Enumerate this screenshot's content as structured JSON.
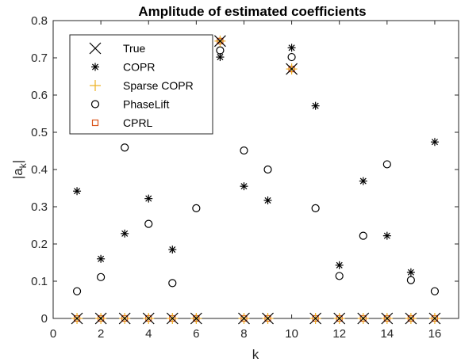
{
  "chart_data": {
    "type": "scatter",
    "title": "Amplitude of estimated coefficients",
    "xlabel": "k",
    "ylabel_main": "|a",
    "ylabel_sub": "k",
    "ylabel_end": "|",
    "xlim": [
      0,
      17
    ],
    "ylim": [
      0,
      0.8
    ],
    "xticks": [
      "0",
      "2",
      "4",
      "6",
      "8",
      "10",
      "12",
      "14",
      "16"
    ],
    "yticks": [
      "0",
      "0.1",
      "0.2",
      "0.3",
      "0.4",
      "0.5",
      "0.6",
      "0.7",
      "0.8"
    ],
    "grid": false,
    "legend_position": "top-left",
    "colors": {
      "true": "#000000",
      "copr": "#000000",
      "sparse_copr": "#EDB120",
      "phaselift": "#000000",
      "cprl": "#D95319"
    },
    "series": [
      {
        "name": "True",
        "marker": "x",
        "x": [
          1,
          2,
          3,
          4,
          5,
          6,
          7,
          8,
          9,
          10,
          11,
          12,
          13,
          14,
          15,
          16
        ],
        "y": [
          0,
          0,
          0,
          0,
          0,
          0,
          0.745,
          0,
          0,
          0.67,
          0,
          0,
          0,
          0,
          0,
          0
        ]
      },
      {
        "name": "COPR",
        "marker": "asterisk",
        "x": [
          1,
          2,
          3,
          4,
          5,
          6,
          7,
          7,
          8,
          9,
          10,
          11,
          12,
          13,
          14,
          15,
          16
        ],
        "y": [
          0.342,
          0.16,
          0.228,
          0.322,
          0.185,
          0.0,
          0.745,
          0.702,
          0.355,
          0.317,
          0.727,
          0.571,
          0.143,
          0.369,
          0.222,
          0.124,
          0.474
        ]
      },
      {
        "name": "Sparse COPR",
        "marker": "plus",
        "x": [
          1,
          2,
          3,
          4,
          5,
          6,
          7,
          8,
          9,
          10,
          11,
          12,
          13,
          14,
          15,
          16
        ],
        "y": [
          0,
          0,
          0,
          0,
          0,
          0,
          0.745,
          0,
          0,
          0.67,
          0,
          0,
          0,
          0,
          0,
          0
        ]
      },
      {
        "name": "PhaseLift",
        "marker": "circle",
        "x": [
          1,
          2,
          3,
          4,
          5,
          6,
          7,
          8,
          9,
          10,
          11,
          12,
          13,
          14,
          15,
          16
        ],
        "y": [
          0.073,
          0.111,
          0.459,
          0.254,
          0.095,
          0.296,
          0.72,
          0.451,
          0.4,
          0.702,
          0.296,
          0.114,
          0.222,
          0.414,
          0.103,
          0.073
        ]
      },
      {
        "name": "CPRL",
        "marker": "square",
        "x": [
          1,
          2,
          3,
          4,
          5,
          6,
          7,
          8,
          9,
          10,
          11,
          12,
          13,
          14,
          15,
          16
        ],
        "y": [
          0,
          0,
          0,
          0,
          0,
          0,
          0.745,
          0,
          0,
          0.67,
          0,
          0,
          0,
          0,
          0,
          0
        ]
      }
    ]
  }
}
